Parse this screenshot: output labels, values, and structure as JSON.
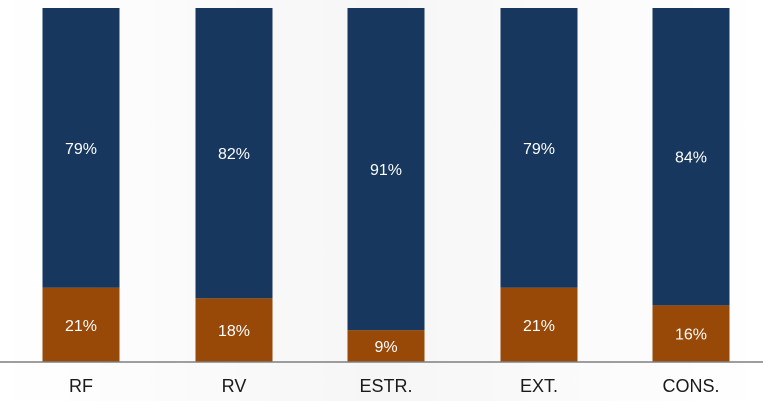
{
  "chart_data": {
    "type": "bar",
    "stacked": true,
    "normalized": true,
    "categories": [
      "RF",
      "RV",
      "ESTR.",
      "EXT.",
      "CONS."
    ],
    "series": [
      {
        "values": [
          21,
          18,
          9,
          21,
          16
        ],
        "labels": [
          "21%",
          "18%",
          "9%",
          "21%",
          "16%"
        ],
        "color": "#984807"
      },
      {
        "values": [
          79,
          82,
          91,
          79,
          84
        ],
        "labels": [
          "79%",
          "82%",
          "91%",
          "79%",
          "84%"
        ],
        "color": "#17375e"
      }
    ],
    "ylim": [
      0,
      100
    ],
    "grid": false,
    "legend": "none",
    "label_color": "#ffffff",
    "axis_color": "#7f7f7f"
  }
}
